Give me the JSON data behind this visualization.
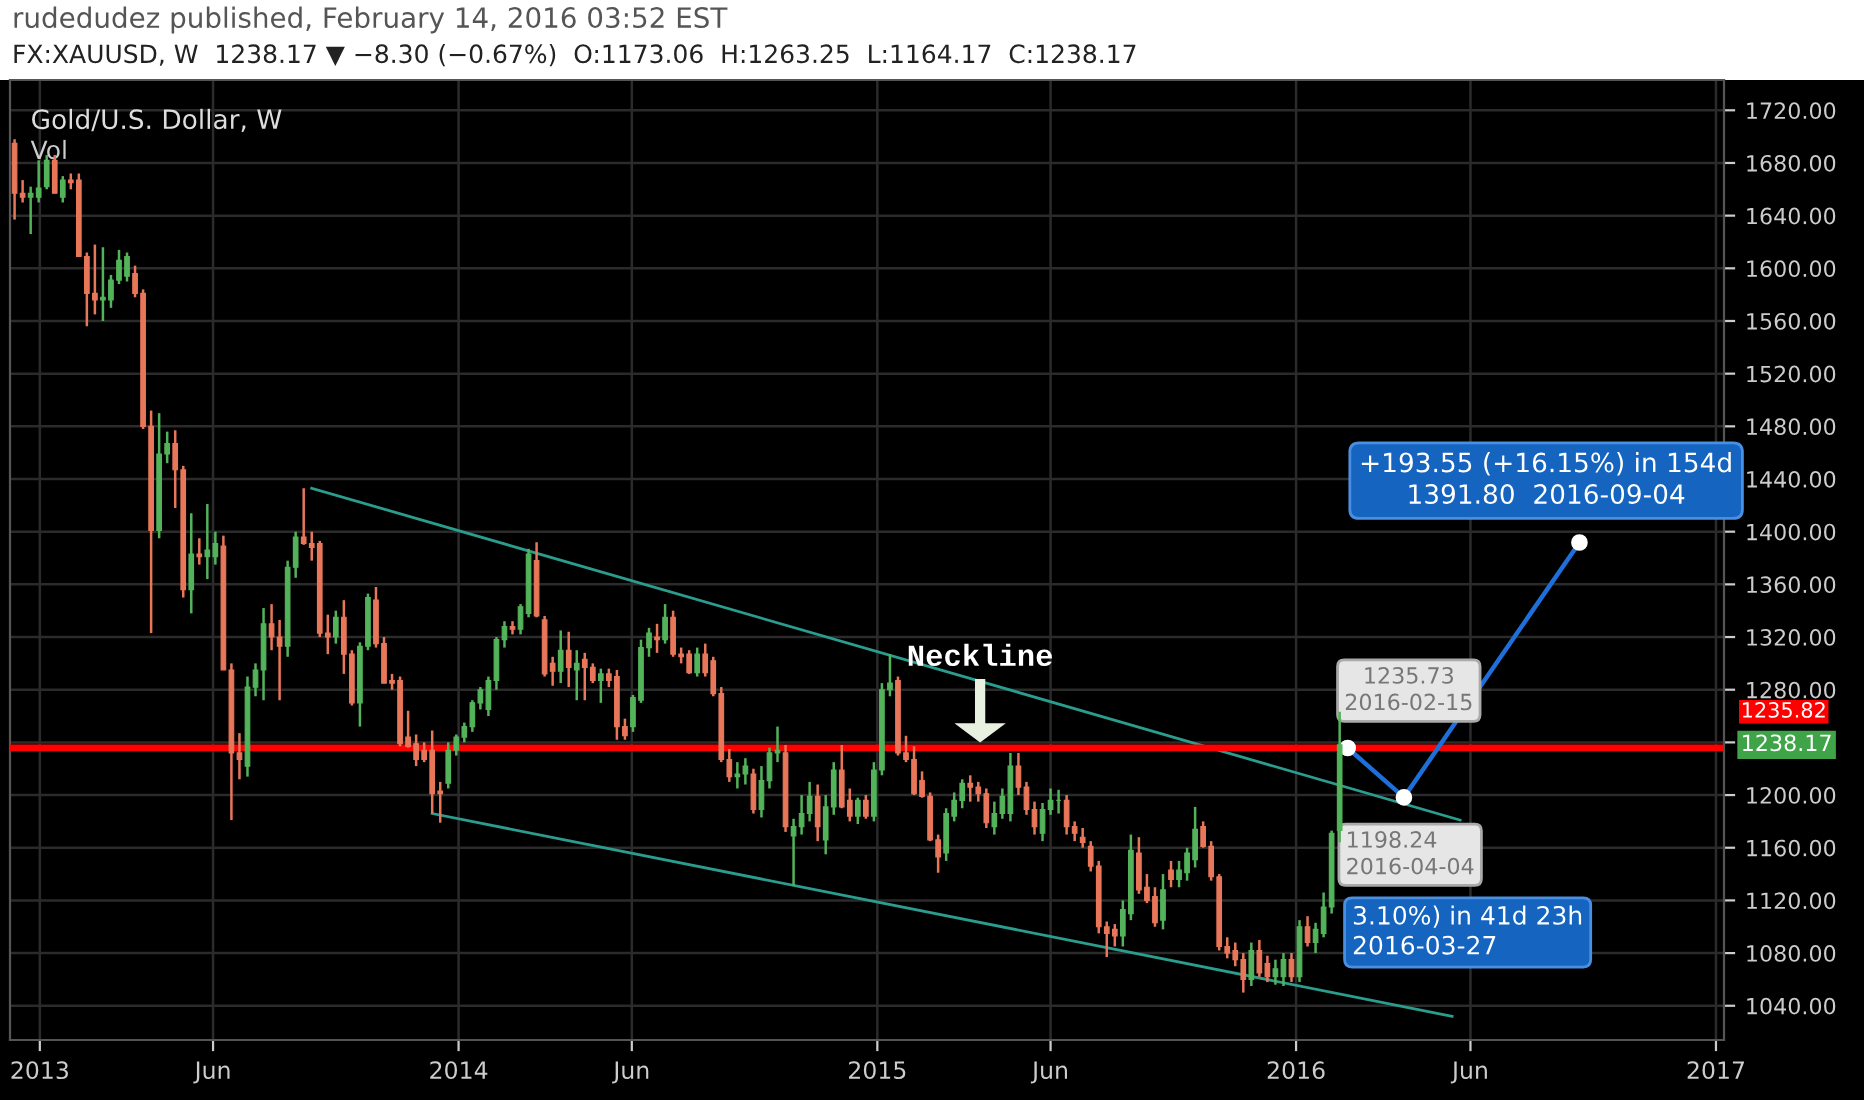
{
  "chart_data": {
    "type": "candlestick",
    "title": "Gold/U.S. Dollar, W",
    "annotations": [
      "rudedudez published, February 14, 2016 03:52 EST",
      "FX:XAUUSD, W  1238.17 ▼ −8.30 (−0.67%)  O:1173.06  H:1263.25  L:1164.17  C:1238.17",
      "Vol",
      "Neckline",
      {
        "text": "1235.73\n2016-02-15",
        "x": "2016-02-15",
        "y": 1235.73
      },
      {
        "text": "1198.24\n2016-04-04",
        "x": "2016-04-04",
        "y": 1198.24
      },
      "3.10%) in 41d 23h\n2016-03-27",
      {
        "text": "+193.55 (+16.15%) in 154d\n1391.80  2016-09-04",
        "x": "2016-09-04",
        "y": 1391.8
      },
      "1238.17"
    ],
    "x": [
      "2012-12-10",
      "2012-12-17",
      "2012-12-24",
      "2012-12-31",
      "2013-01-07",
      "2013-01-14",
      "2013-01-21",
      "2013-01-28",
      "2013-02-04",
      "2013-02-11",
      "2013-02-18",
      "2013-02-25",
      "2013-03-04",
      "2013-03-11",
      "2013-03-18",
      "2013-03-25",
      "2013-04-01",
      "2013-04-08",
      "2013-04-15",
      "2013-04-22",
      "2013-04-29",
      "2013-05-06",
      "2013-05-13",
      "2013-05-20",
      "2013-05-27",
      "2013-06-03",
      "2013-06-10",
      "2013-06-17",
      "2013-06-24",
      "2013-07-01",
      "2013-07-08",
      "2013-07-15",
      "2013-07-22",
      "2013-07-29",
      "2013-08-05",
      "2013-08-12",
      "2013-08-19",
      "2013-08-26",
      "2013-09-02",
      "2013-09-09",
      "2013-09-16",
      "2013-09-23",
      "2013-09-30",
      "2013-10-07",
      "2013-10-14",
      "2013-10-21",
      "2013-10-28",
      "2013-11-04",
      "2013-11-11",
      "2013-11-18",
      "2013-11-25",
      "2013-12-02",
      "2013-12-09",
      "2013-12-16",
      "2013-12-23",
      "2013-12-30",
      "2014-01-06",
      "2014-01-13",
      "2014-01-20",
      "2014-01-27",
      "2014-02-03",
      "2014-02-10",
      "2014-02-17",
      "2014-02-24",
      "2014-03-03",
      "2014-03-10",
      "2014-03-17",
      "2014-03-24",
      "2014-03-31",
      "2014-04-07",
      "2014-04-14",
      "2014-04-21",
      "2014-04-28",
      "2014-05-05",
      "2014-05-12",
      "2014-05-19",
      "2014-05-26",
      "2014-06-02",
      "2014-06-09",
      "2014-06-16",
      "2014-06-23",
      "2014-06-30",
      "2014-07-07",
      "2014-07-14",
      "2014-07-21",
      "2014-07-28",
      "2014-08-04",
      "2014-08-11",
      "2014-08-18",
      "2014-08-25",
      "2014-09-01",
      "2014-09-08",
      "2014-09-15",
      "2014-09-22",
      "2014-09-29",
      "2014-10-06",
      "2014-10-13",
      "2014-10-20",
      "2014-10-27",
      "2014-11-03",
      "2014-11-10",
      "2014-11-17",
      "2014-11-24",
      "2014-12-01",
      "2014-12-08",
      "2014-12-15",
      "2014-12-22",
      "2014-12-29",
      "2015-01-05",
      "2015-01-12",
      "2015-01-19",
      "2015-01-26",
      "2015-02-02",
      "2015-02-09",
      "2015-02-16",
      "2015-02-23",
      "2015-03-02",
      "2015-03-09",
      "2015-03-16",
      "2015-03-23",
      "2015-03-30",
      "2015-04-06",
      "2015-04-13",
      "2015-04-20",
      "2015-04-27",
      "2015-05-04",
      "2015-05-11",
      "2015-05-18",
      "2015-05-25",
      "2015-06-01",
      "2015-06-08",
      "2015-06-15",
      "2015-06-22",
      "2015-06-29",
      "2015-07-06",
      "2015-07-13",
      "2015-07-20",
      "2015-07-27",
      "2015-08-03",
      "2015-08-10",
      "2015-08-17",
      "2015-08-24",
      "2015-08-31",
      "2015-09-07",
      "2015-09-14",
      "2015-09-21",
      "2015-09-28",
      "2015-10-05",
      "2015-10-12",
      "2015-10-19",
      "2015-10-26",
      "2015-11-02",
      "2015-11-09",
      "2015-11-16",
      "2015-11-23",
      "2015-11-30",
      "2015-12-07",
      "2015-12-14",
      "2015-12-21",
      "2015-12-28",
      "2016-01-04",
      "2016-01-11",
      "2016-01-18",
      "2016-01-25",
      "2016-02-01",
      "2016-02-08"
    ],
    "ohlc": [
      [
        1695,
        1698,
        1637,
        1657
      ],
      [
        1657,
        1667,
        1650,
        1654
      ],
      [
        1654,
        1662,
        1626,
        1657
      ],
      [
        1654,
        1682,
        1650,
        1661
      ],
      [
        1662,
        1686,
        1660,
        1682
      ],
      [
        1682,
        1686,
        1657,
        1657
      ],
      [
        1654,
        1670,
        1650,
        1667
      ],
      [
        1667,
        1672,
        1660,
        1665
      ],
      [
        1667,
        1672,
        1609,
        1609
      ],
      [
        1609,
        1612,
        1556,
        1581
      ],
      [
        1581,
        1618,
        1565,
        1576
      ],
      [
        1576,
        1616,
        1560,
        1578
      ],
      [
        1576,
        1595,
        1570,
        1591
      ],
      [
        1591,
        1614,
        1588,
        1606
      ],
      [
        1594,
        1612,
        1590,
        1609
      ],
      [
        1596,
        1602,
        1578,
        1581
      ],
      [
        1581,
        1584,
        1478,
        1480
      ],
      [
        1480,
        1492,
        1323,
        1401
      ],
      [
        1401,
        1490,
        1395,
        1459
      ],
      [
        1459,
        1476,
        1452,
        1467
      ],
      [
        1467,
        1477,
        1418,
        1447
      ],
      [
        1447,
        1450,
        1350,
        1356
      ],
      [
        1356,
        1414,
        1338,
        1383
      ],
      [
        1383,
        1395,
        1375,
        1381
      ],
      [
        1381,
        1421,
        1364,
        1386
      ],
      [
        1381,
        1400,
        1375,
        1391
      ],
      [
        1389,
        1397,
        1295,
        1295
      ],
      [
        1295,
        1300,
        1181,
        1232
      ],
      [
        1232,
        1247,
        1212,
        1227
      ],
      [
        1222,
        1290,
        1214,
        1282
      ],
      [
        1282,
        1300,
        1275,
        1295
      ],
      [
        1295,
        1342,
        1272,
        1330
      ],
      [
        1330,
        1345,
        1310,
        1320
      ],
      [
        1320,
        1333,
        1272,
        1313
      ],
      [
        1313,
        1378,
        1305,
        1373
      ],
      [
        1373,
        1400,
        1365,
        1396
      ],
      [
        1396,
        1433,
        1390,
        1391
      ],
      [
        1391,
        1400,
        1378,
        1388
      ],
      [
        1391,
        1393,
        1320,
        1323
      ],
      [
        1323,
        1337,
        1307,
        1320
      ],
      [
        1320,
        1340,
        1315,
        1335
      ],
      [
        1335,
        1348,
        1292,
        1307
      ],
      [
        1307,
        1310,
        1268,
        1270
      ],
      [
        1270,
        1316,
        1252,
        1313
      ],
      [
        1313,
        1353,
        1310,
        1350
      ],
      [
        1348,
        1358,
        1312,
        1315
      ],
      [
        1315,
        1320,
        1285,
        1285
      ],
      [
        1287,
        1292,
        1280,
        1285
      ],
      [
        1287,
        1290,
        1237,
        1239
      ],
      [
        1244,
        1264,
        1236,
        1237
      ],
      [
        1239,
        1246,
        1222,
        1227
      ],
      [
        1234,
        1240,
        1225,
        1227
      ],
      [
        1234,
        1249,
        1186,
        1201
      ],
      [
        1203,
        1210,
        1179,
        1201
      ],
      [
        1209,
        1240,
        1205,
        1234
      ],
      [
        1234,
        1246,
        1230,
        1244
      ],
      [
        1244,
        1255,
        1240,
        1252
      ],
      [
        1252,
        1272,
        1248,
        1270
      ],
      [
        1270,
        1282,
        1265,
        1280
      ],
      [
        1265,
        1290,
        1260,
        1287
      ],
      [
        1287,
        1320,
        1280,
        1318
      ],
      [
        1318,
        1332,
        1312,
        1328
      ],
      [
        1328,
        1332,
        1322,
        1326
      ],
      [
        1326,
        1345,
        1322,
        1343
      ],
      [
        1338,
        1387,
        1335,
        1383
      ],
      [
        1378,
        1392,
        1335,
        1336
      ],
      [
        1333,
        1336,
        1290,
        1292
      ],
      [
        1300,
        1305,
        1283,
        1294
      ],
      [
        1294,
        1325,
        1285,
        1310
      ],
      [
        1310,
        1324,
        1282,
        1297
      ],
      [
        1295,
        1310,
        1272,
        1300
      ],
      [
        1303,
        1308,
        1272,
        1297
      ],
      [
        1297,
        1300,
        1285,
        1287
      ],
      [
        1287,
        1296,
        1270,
        1292
      ],
      [
        1292,
        1296,
        1282,
        1287
      ],
      [
        1290,
        1295,
        1242,
        1252
      ],
      [
        1252,
        1258,
        1242,
        1245
      ],
      [
        1252,
        1276,
        1248,
        1274
      ],
      [
        1272,
        1318,
        1270,
        1312
      ],
      [
        1312,
        1327,
        1305,
        1323
      ],
      [
        1320,
        1330,
        1308,
        1318
      ],
      [
        1318,
        1345,
        1315,
        1335
      ],
      [
        1335,
        1340,
        1305,
        1307
      ],
      [
        1307,
        1312,
        1300,
        1305
      ],
      [
        1307,
        1310,
        1292,
        1293
      ],
      [
        1293,
        1312,
        1290,
        1307
      ],
      [
        1307,
        1315,
        1290,
        1293
      ],
      [
        1302,
        1305,
        1275,
        1277
      ],
      [
        1277,
        1282,
        1225,
        1227
      ],
      [
        1227,
        1235,
        1210,
        1214
      ],
      [
        1214,
        1225,
        1205,
        1216
      ],
      [
        1216,
        1228,
        1208,
        1222
      ],
      [
        1216,
        1220,
        1186,
        1189
      ],
      [
        1189,
        1222,
        1183,
        1211
      ],
      [
        1211,
        1236,
        1205,
        1232
      ],
      [
        1232,
        1252,
        1225,
        1234
      ],
      [
        1232,
        1238,
        1172,
        1176
      ],
      [
        1169,
        1182,
        1131,
        1176
      ],
      [
        1176,
        1200,
        1170,
        1186
      ],
      [
        1186,
        1210,
        1180,
        1199
      ],
      [
        1199,
        1208,
        1165,
        1176
      ],
      [
        1166,
        1200,
        1155,
        1191
      ],
      [
        1191,
        1225,
        1185,
        1219
      ],
      [
        1219,
        1238,
        1190,
        1191
      ],
      [
        1196,
        1205,
        1180,
        1184
      ],
      [
        1184,
        1198,
        1178,
        1196
      ],
      [
        1196,
        1200,
        1182,
        1184
      ],
      [
        1184,
        1225,
        1180,
        1219
      ],
      [
        1219,
        1285,
        1215,
        1280
      ],
      [
        1280,
        1307,
        1275,
        1285
      ],
      [
        1287,
        1290,
        1230,
        1232
      ],
      [
        1232,
        1245,
        1225,
        1227
      ],
      [
        1227,
        1237,
        1200,
        1201
      ],
      [
        1211,
        1218,
        1198,
        1199
      ],
      [
        1199,
        1202,
        1165,
        1166
      ],
      [
        1166,
        1170,
        1141,
        1153
      ],
      [
        1156,
        1190,
        1150,
        1186
      ],
      [
        1184,
        1202,
        1180,
        1196
      ],
      [
        1196,
        1212,
        1190,
        1209
      ],
      [
        1209,
        1215,
        1195,
        1206
      ],
      [
        1206,
        1210,
        1195,
        1201
      ],
      [
        1201,
        1205,
        1175,
        1179
      ],
      [
        1176,
        1195,
        1170,
        1186
      ],
      [
        1186,
        1205,
        1182,
        1199
      ],
      [
        1186,
        1232,
        1180,
        1222
      ],
      [
        1222,
        1232,
        1200,
        1206
      ],
      [
        1206,
        1210,
        1185,
        1189
      ],
      [
        1189,
        1195,
        1170,
        1176
      ],
      [
        1171,
        1194,
        1165,
        1189
      ],
      [
        1189,
        1205,
        1185,
        1196
      ],
      [
        1196,
        1204,
        1186,
        1196
      ],
      [
        1196,
        1200,
        1170,
        1176
      ],
      [
        1176,
        1180,
        1165,
        1171
      ],
      [
        1168,
        1175,
        1160,
        1164
      ],
      [
        1161,
        1165,
        1142,
        1146
      ],
      [
        1146,
        1150,
        1095,
        1100
      ],
      [
        1100,
        1104,
        1077,
        1095
      ],
      [
        1098,
        1102,
        1085,
        1093
      ],
      [
        1093,
        1120,
        1085,
        1113
      ],
      [
        1110,
        1170,
        1105,
        1158
      ],
      [
        1156,
        1168,
        1125,
        1128
      ],
      [
        1130,
        1140,
        1118,
        1120
      ],
      [
        1123,
        1130,
        1100,
        1103
      ],
      [
        1105,
        1140,
        1098,
        1128
      ],
      [
        1143,
        1150,
        1130,
        1136
      ],
      [
        1136,
        1150,
        1130,
        1143
      ],
      [
        1141,
        1160,
        1135,
        1156
      ],
      [
        1151,
        1191,
        1145,
        1174
      ],
      [
        1176,
        1180,
        1160,
        1161
      ],
      [
        1161,
        1165,
        1135,
        1138
      ],
      [
        1138,
        1140,
        1082,
        1085
      ],
      [
        1085,
        1092,
        1076,
        1080
      ],
      [
        1082,
        1088,
        1070,
        1075
      ],
      [
        1075,
        1080,
        1050,
        1060
      ],
      [
        1060,
        1088,
        1055,
        1082
      ],
      [
        1082,
        1090,
        1062,
        1065
      ],
      [
        1072,
        1078,
        1058,
        1062
      ],
      [
        1062,
        1075,
        1056,
        1068
      ],
      [
        1062,
        1080,
        1055,
        1075
      ],
      [
        1075,
        1080,
        1058,
        1062
      ],
      [
        1062,
        1105,
        1058,
        1100
      ],
      [
        1100,
        1108,
        1085,
        1088
      ],
      [
        1088,
        1103,
        1080,
        1098
      ],
      [
        1095,
        1126,
        1092,
        1115
      ],
      [
        1115,
        1173,
        1110,
        1171
      ],
      [
        1173.06,
        1263.25,
        1164.17,
        1238.17
      ]
    ],
    "colors": [
      "#e8775a",
      "#e8775a",
      "#53b35a",
      "#53b35a",
      "#53b35a",
      "#e8775a",
      "#53b35a",
      "#e8775a",
      "#e8775a",
      "#e8775a",
      "#e8775a",
      "#53b35a",
      "#53b35a",
      "#53b35a",
      "#53b35a",
      "#e8775a",
      "#e8775a",
      "#e8775a",
      "#53b35a",
      "#53b35a",
      "#e8775a",
      "#e8775a",
      "#53b35a",
      "#e8775a",
      "#53b35a",
      "#53b35a",
      "#e8775a",
      "#e8775a",
      "#e8775a",
      "#53b35a",
      "#53b35a",
      "#53b35a",
      "#e8775a",
      "#e8775a",
      "#53b35a",
      "#53b35a",
      "#e8775a",
      "#e8775a",
      "#e8775a",
      "#e8775a",
      "#53b35a",
      "#e8775a",
      "#e8775a",
      "#53b35a",
      "#53b35a",
      "#e8775a",
      "#e8775a",
      "#e8775a",
      "#e8775a",
      "#e8775a",
      "#e8775a",
      "#e8775a",
      "#e8775a",
      "#e8775a",
      "#53b35a",
      "#53b35a",
      "#53b35a",
      "#53b35a",
      "#53b35a",
      "#53b35a",
      "#53b35a",
      "#53b35a",
      "#e8775a",
      "#53b35a",
      "#53b35a",
      "#e8775a",
      "#e8775a",
      "#e8775a",
      "#53b35a",
      "#e8775a",
      "#53b35a",
      "#e8775a",
      "#e8775a",
      "#53b35a",
      "#e8775a",
      "#e8775a",
      "#e8775a",
      "#53b35a",
      "#53b35a",
      "#53b35a",
      "#e8775a",
      "#53b35a",
      "#e8775a",
      "#e8775a",
      "#e8775a",
      "#53b35a",
      "#e8775a",
      "#e8775a",
      "#e8775a",
      "#e8775a",
      "#53b35a",
      "#53b35a",
      "#e8775a",
      "#53b35a",
      "#53b35a",
      "#53b35a",
      "#e8775a",
      "#53b35a",
      "#53b35a",
      "#53b35a",
      "#e8775a",
      "#53b35a",
      "#53b35a",
      "#e8775a",
      "#e8775a",
      "#53b35a",
      "#e8775a",
      "#53b35a",
      "#53b35a",
      "#53b35a",
      "#e8775a",
      "#e8775a",
      "#e8775a",
      "#e8775a",
      "#e8775a",
      "#e8775a",
      "#53b35a",
      "#53b35a",
      "#53b35a",
      "#e8775a",
      "#e8775a",
      "#e8775a",
      "#53b35a",
      "#53b35a",
      "#53b35a",
      "#e8775a",
      "#e8775a",
      "#e8775a",
      "#53b35a",
      "#53b35a",
      "#53b35a",
      "#e8775a",
      "#e8775a",
      "#e8775a",
      "#e8775a",
      "#e8775a",
      "#e8775a",
      "#e8775a",
      "#53b35a",
      "#53b35a",
      "#e8775a",
      "#e8775a",
      "#e8775a",
      "#53b35a",
      "#e8775a",
      "#53b35a",
      "#53b35a",
      "#53b35a",
      "#e8775a",
      "#e8775a",
      "#e8775a",
      "#e8775a",
      "#e8775a",
      "#e8775a",
      "#53b35a",
      "#e8775a",
      "#e8775a",
      "#53b35a",
      "#53b35a",
      "#e8775a",
      "#53b35a",
      "#e8775a",
      "#53b35a",
      "#53b35a",
      "#53b35a",
      "#53b35a"
    ],
    "series": [
      {
        "type": "line",
        "color": "#2a9d8f",
        "x": [
          "2013-08-26",
          "2016-05-23"
        ],
        "values": [
          1433,
          1181
        ]
      },
      {
        "type": "line",
        "color": "#2a9d8f",
        "x": [
          "2013-12-09",
          "2016-05-16"
        ],
        "values": [
          1186,
          1032
        ]
      },
      {
        "type": "line",
        "color": "#1e6fd9",
        "marker": "circle",
        "x": [
          "2016-02-15",
          "2016-04-04",
          "2016-09-04"
        ],
        "values": [
          1235.73,
          1198.24,
          1391.8
        ]
      }
    ],
    "ref_lines": [
      {
        "axis": "y",
        "value": 1235.82,
        "label": "1235.82",
        "color": "#ff0000"
      }
    ],
    "xlim": [
      "2012-12-06",
      "2017-01-08"
    ],
    "xticks": [
      {
        "value": "2013-01-01",
        "label": "2013"
      },
      {
        "value": "2013-06-01",
        "label": "Jun"
      },
      {
        "value": "2014-01-01",
        "label": "2014"
      },
      {
        "value": "2014-06-01",
        "label": "Jun"
      },
      {
        "value": "2015-01-01",
        "label": "2015"
      },
      {
        "value": "2015-06-01",
        "label": "Jun"
      },
      {
        "value": "2016-01-01",
        "label": "2016"
      },
      {
        "value": "2016-06-01",
        "label": "Jun"
      },
      {
        "value": "2017-01-01",
        "label": "2017"
      }
    ],
    "ylim": [
      1014,
      1743
    ],
    "yticks": [
      {
        "value": 1040,
        "label": "1040.00"
      },
      {
        "value": 1080,
        "label": "1080.00"
      },
      {
        "value": 1120,
        "label": "1120.00"
      },
      {
        "value": 1160,
        "label": "1160.00"
      },
      {
        "value": 1200,
        "label": "1200.00"
      },
      {
        "value": 1240,
        "label": null
      },
      {
        "value": 1280,
        "label": "1280.00"
      },
      {
        "value": 1320,
        "label": "1320.00"
      },
      {
        "value": 1360,
        "label": "1360.00"
      },
      {
        "value": 1400,
        "label": "1400.00"
      },
      {
        "value": 1440,
        "label": "1440.00"
      },
      {
        "value": 1480,
        "label": "1480.00"
      },
      {
        "value": 1520,
        "label": "1520.00"
      },
      {
        "value": 1560,
        "label": "1560.00"
      },
      {
        "value": 1600,
        "label": "1600.00"
      },
      {
        "value": 1640,
        "label": "1640.00"
      },
      {
        "value": 1680,
        "label": "1680.00"
      },
      {
        "value": 1720,
        "label": "1720.00"
      }
    ],
    "grid": true
  }
}
